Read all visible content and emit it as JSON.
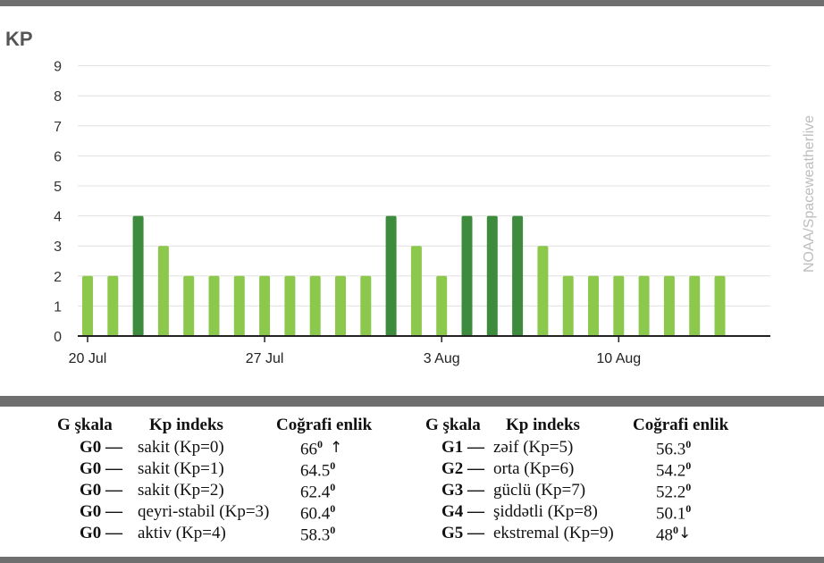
{
  "chart_data": {
    "type": "bar",
    "title": "KP",
    "credit": "NOAA/Spaceweatherlive",
    "ylim": [
      0,
      9
    ],
    "y_ticks": [
      0,
      1,
      2,
      3,
      4,
      5,
      6,
      7,
      8,
      9
    ],
    "grid": true,
    "x_tick_labels": [
      {
        "label": "20 Jul",
        "day": 0
      },
      {
        "label": "27 Jul",
        "day": 7
      },
      {
        "label": "3 Aug",
        "day": 14
      },
      {
        "label": "10 Aug",
        "day": 21
      }
    ],
    "values": [
      2,
      2,
      4,
      3,
      2,
      2,
      2,
      2,
      2,
      2,
      2,
      2,
      4,
      3,
      2,
      4,
      4,
      4,
      3,
      2,
      2,
      2,
      2,
      2,
      2,
      2
    ],
    "colors": {
      "kp_below_4": "#8cc84b",
      "kp_4": "#3d8b3d",
      "grid": "#e0e0e0",
      "axis": "#222222"
    }
  },
  "legend": {
    "headers": {
      "g_scale": "G şkala",
      "kp_index": "Kp indeks",
      "latitude": "Coğrafi enlik"
    },
    "left": [
      {
        "code": "G0 —",
        "desc": "sakit (Kp=0)",
        "lat": "66",
        "arrow": "↑"
      },
      {
        "code": "G0 —",
        "desc": "sakit (Kp=1)",
        "lat": "64.5",
        "arrow": ""
      },
      {
        "code": "G0 —",
        "desc": "sakit (Kp=2)",
        "lat": "62.4",
        "arrow": ""
      },
      {
        "code": "G0 —",
        "desc": "qeyri-stabil (Kp=3)",
        "lat": "60.4",
        "arrow": ""
      },
      {
        "code": "G0 —",
        "desc": "aktiv (Kp=4)",
        "lat": "58.3",
        "arrow": ""
      }
    ],
    "right": [
      {
        "code": "G1 —",
        "desc": "zəif (Kp=5)",
        "lat": "56.3",
        "arrow": ""
      },
      {
        "code": "G2 —",
        "desc": "orta (Kp=6)",
        "lat": "54.2",
        "arrow": ""
      },
      {
        "code": "G3 —",
        "desc": "güclü (Kp=7)",
        "lat": "52.2",
        "arrow": ""
      },
      {
        "code": "G4 —",
        "desc": "şiddətli (Kp=8)",
        "lat": "50.1",
        "arrow": ""
      },
      {
        "code": "G5 —",
        "desc": "ekstremal (Kp=9)",
        "lat": "48",
        "arrow": "↓"
      }
    ],
    "degree_symbol": "0"
  }
}
